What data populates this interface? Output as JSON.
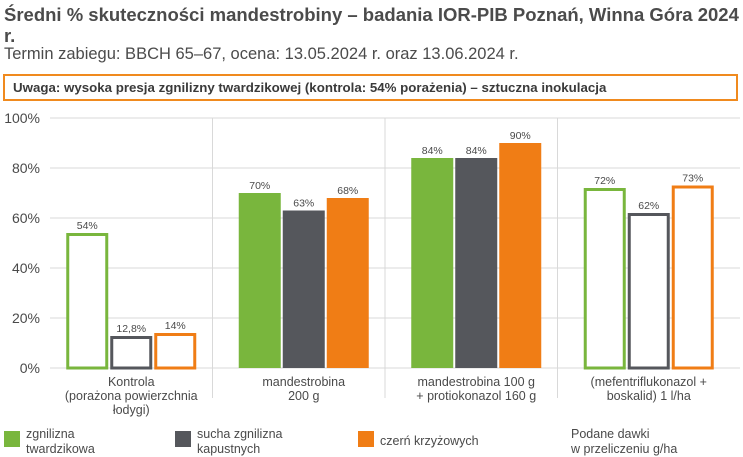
{
  "title": "Średni % skuteczności mandestrobiny – badania IOR-PIB Poznań, Winna Góra 2024 r.",
  "subtitle": "Termin zabiegu: BBCH 65–67, ocena: 13.05.2024 r. oraz 13.06.2024 r.",
  "note": "Uwaga: wysoka presja zgnilizny twardzikowej (kontrola: 54% porażenia) – sztuczna inokulacja",
  "footnote": "Podane dawki\nw przeliczeniu g/ha",
  "colors": {
    "green": "#79b63d",
    "gray": "#55575c",
    "orange": "#f07d15",
    "grid": "#d9d9d9"
  },
  "chart_data": {
    "type": "bar",
    "categories": [
      "Kontrola\n(porażona powierzchnia\nłodygi)",
      "mandestrobina\n200 g",
      "mandestrobina 100 g\n+ protiokonazol 160 g",
      "(mefentriflukonazol +\nboskalid) 1 l/ha"
    ],
    "series": [
      {
        "name": "zgnilizna\ntwardzikowa",
        "color": "#79b63d",
        "values": [
          54,
          70,
          84,
          72
        ],
        "labels": [
          "54%",
          "70%",
          "84%",
          "72%"
        ]
      },
      {
        "name": "sucha zgnilizna\nkapustnych",
        "color": "#55575c",
        "values": [
          12.8,
          63,
          84,
          62
        ],
        "labels": [
          "12,8%",
          "63%",
          "84%",
          "62%"
        ]
      },
      {
        "name": "czerń krzyżowych",
        "color": "#f07d15",
        "values": [
          14,
          68,
          90,
          73
        ],
        "labels": [
          "14%",
          "68%",
          "90%",
          "73%"
        ]
      }
    ],
    "hollow_groups": [
      0,
      3
    ],
    "ylim": [
      0,
      100
    ],
    "yticks": [
      0,
      20,
      40,
      60,
      80,
      100
    ],
    "ytick_labels": [
      "0%",
      "20%",
      "40%",
      "60%",
      "80%",
      "100%"
    ],
    "grid": true,
    "legend_position": "bottom"
  }
}
